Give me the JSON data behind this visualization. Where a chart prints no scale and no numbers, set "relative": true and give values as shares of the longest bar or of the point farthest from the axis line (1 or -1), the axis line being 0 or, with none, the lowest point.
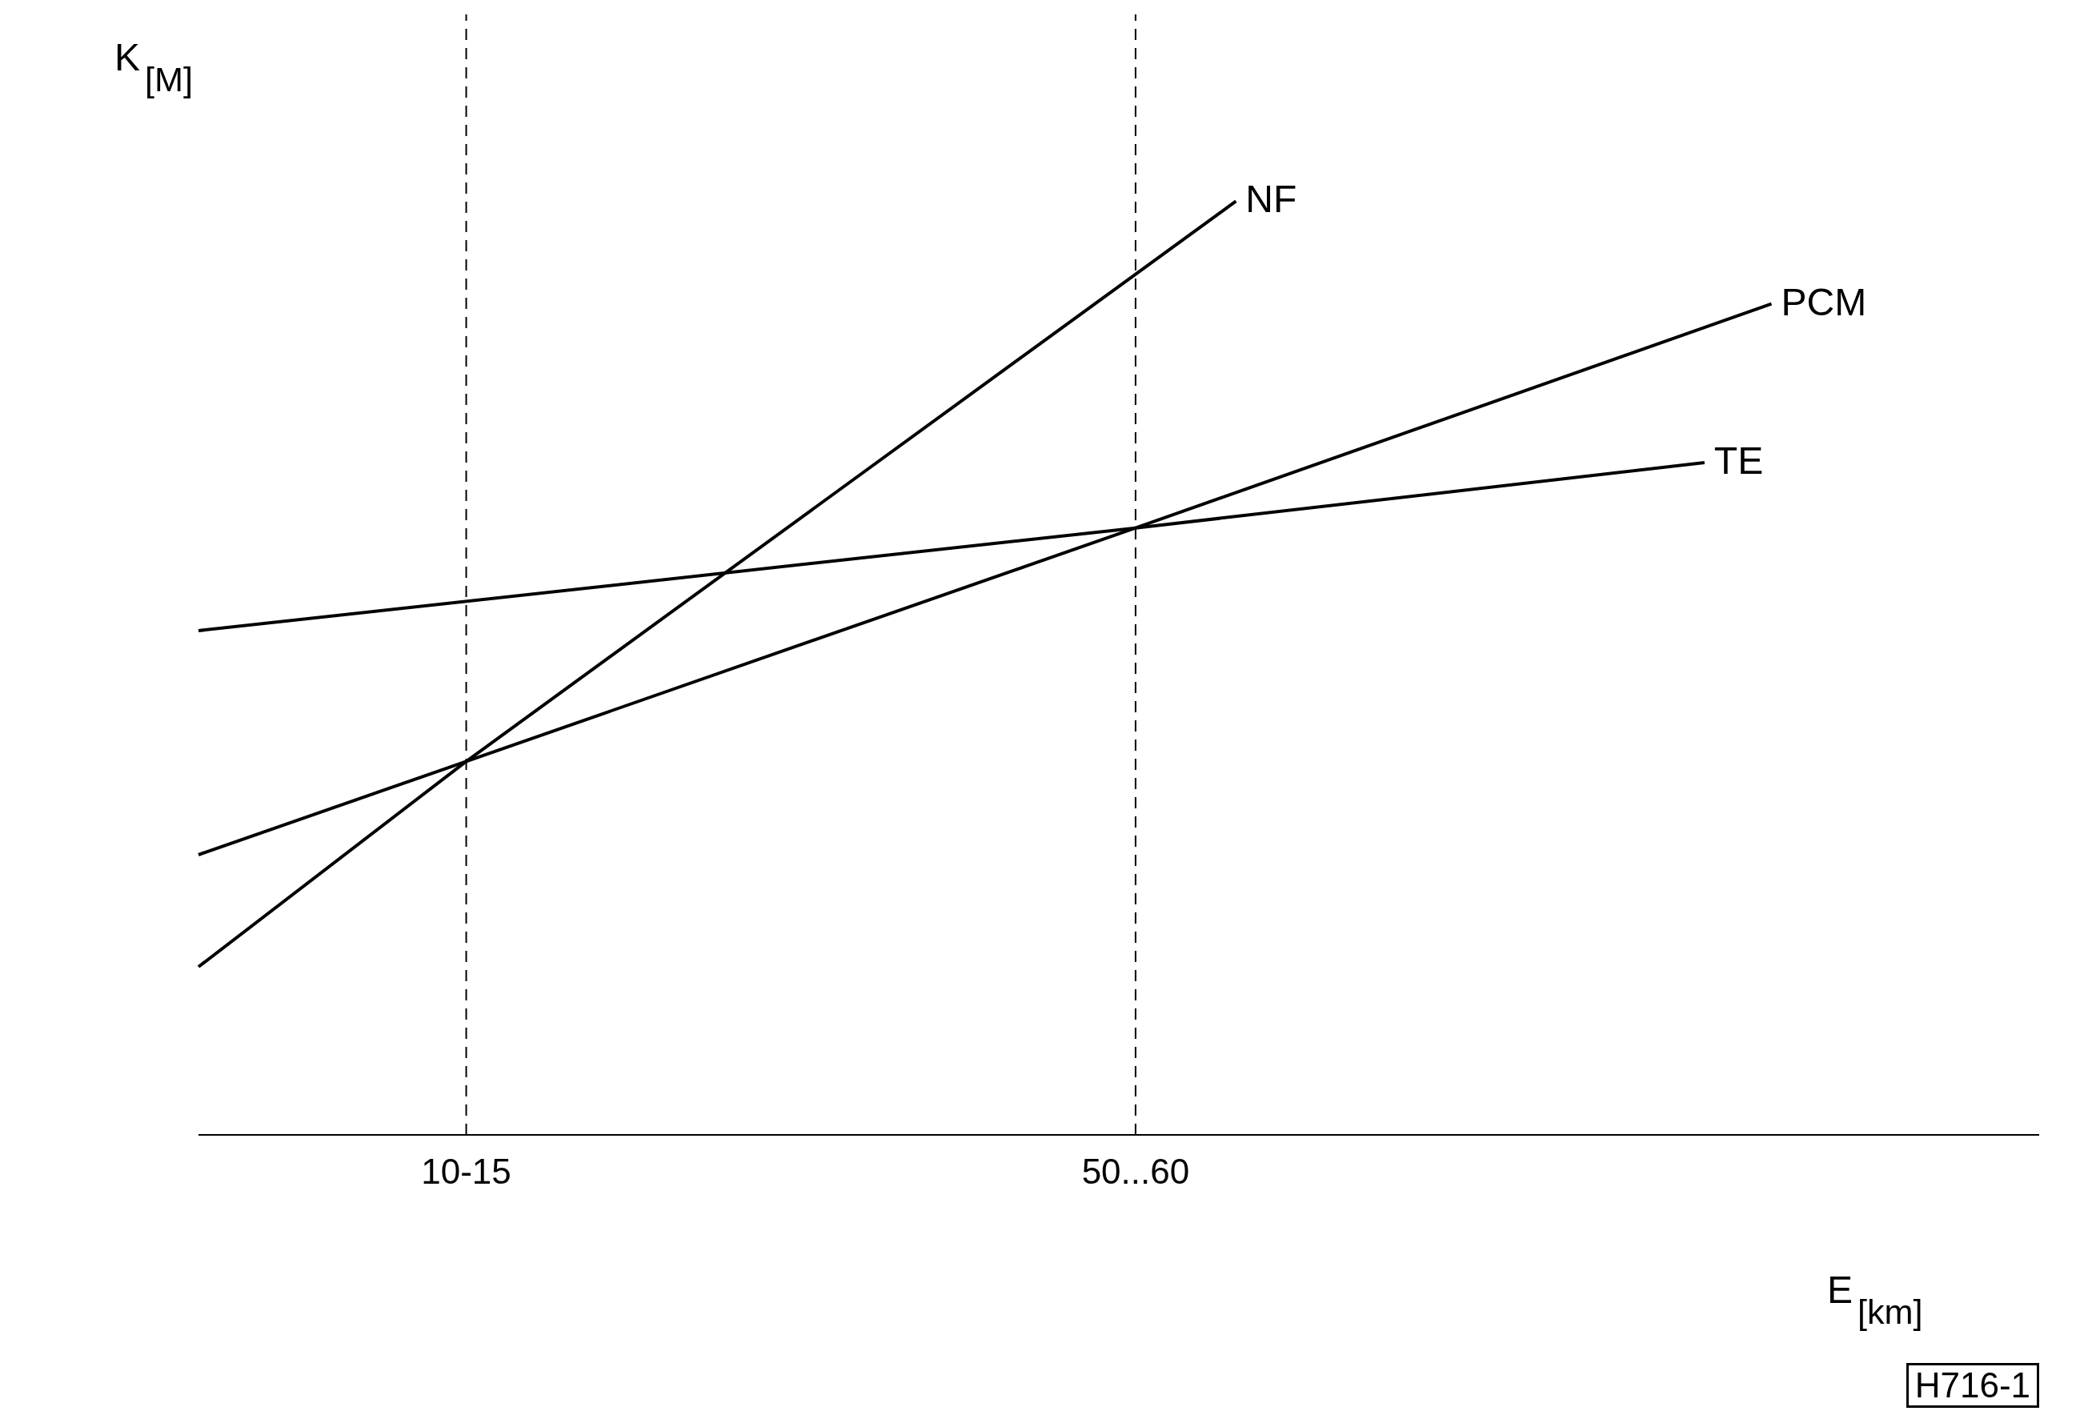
{
  "chart_data": {
    "type": "line",
    "relative": true,
    "xlabel": "E$_{[km]}$",
    "ylabel": "K$_{[M]}$",
    "categories": [
      null,
      null,
      null,
      null,
      null,
      null,
      null,
      null,
      "10-15",
      null,
      null,
      null,
      null,
      null,
      null,
      null,
      null,
      null,
      null,
      null,
      null,
      null,
      null,
      null,
      null,
      null,
      null,
      null,
      "50...60",
      null,
      null,
      null,
      null,
      null,
      null,
      null,
      null,
      null,
      null,
      null,
      null,
      null,
      null,
      null,
      null,
      null,
      null,
      null,
      null,
      null,
      null,
      null,
      null,
      null,
      null,
      null
    ],
    "series": [
      {
        "name": "NF",
        "color": "#000000",
        "values": [
          0.18,
          null,
          null,
          null,
          null,
          null,
          null,
          null,
          0.4,
          null,
          null,
          null,
          null,
          null,
          null,
          null,
          null,
          null,
          null,
          null,
          null,
          null,
          null,
          null,
          null,
          null,
          null,
          null,
          null,
          null,
          null,
          1,
          null,
          null,
          null,
          null,
          null,
          null,
          null,
          null,
          null,
          null,
          null,
          null,
          null,
          null,
          null,
          null,
          null,
          null,
          null,
          null,
          null,
          null,
          null,
          null
        ]
      },
      {
        "name": "PCM",
        "color": "#000000",
        "values": [
          0.3,
          null,
          null,
          null,
          null,
          null,
          null,
          null,
          0.4,
          null,
          null,
          null,
          null,
          null,
          null,
          null,
          null,
          null,
          null,
          null,
          null,
          null,
          null,
          null,
          null,
          null,
          null,
          null,
          0.65,
          null,
          null,
          null,
          null,
          null,
          null,
          null,
          null,
          null,
          null,
          null,
          null,
          null,
          null,
          null,
          null,
          null,
          null,
          0.89,
          null,
          null,
          null,
          null,
          null,
          null,
          null,
          null
        ]
      },
      {
        "name": "TE",
        "color": "#000000",
        "values": [
          0.54,
          null,
          null,
          null,
          null,
          null,
          null,
          null,
          null,
          null,
          null,
          null,
          null,
          null,
          null,
          null,
          null,
          null,
          null,
          null,
          null,
          null,
          null,
          null,
          null,
          null,
          null,
          null,
          0.65,
          null,
          null,
          null,
          null,
          null,
          null,
          null,
          null,
          null,
          null,
          null,
          null,
          null,
          null,
          null,
          null,
          0.72,
          null,
          null,
          null,
          null,
          null,
          null,
          null,
          null,
          null,
          null
        ]
      }
    ],
    "ref_lines": [
      {
        "axis": "x",
        "value": "10-15",
        "line_style": "dashed"
      },
      {
        "axis": "x",
        "value": "50...60",
        "line_style": "dashed"
      }
    ],
    "annotations": [
      "H716-1"
    ],
    "legend": false,
    "grid": false,
    "marker": "none",
    "line_style": "solid"
  }
}
